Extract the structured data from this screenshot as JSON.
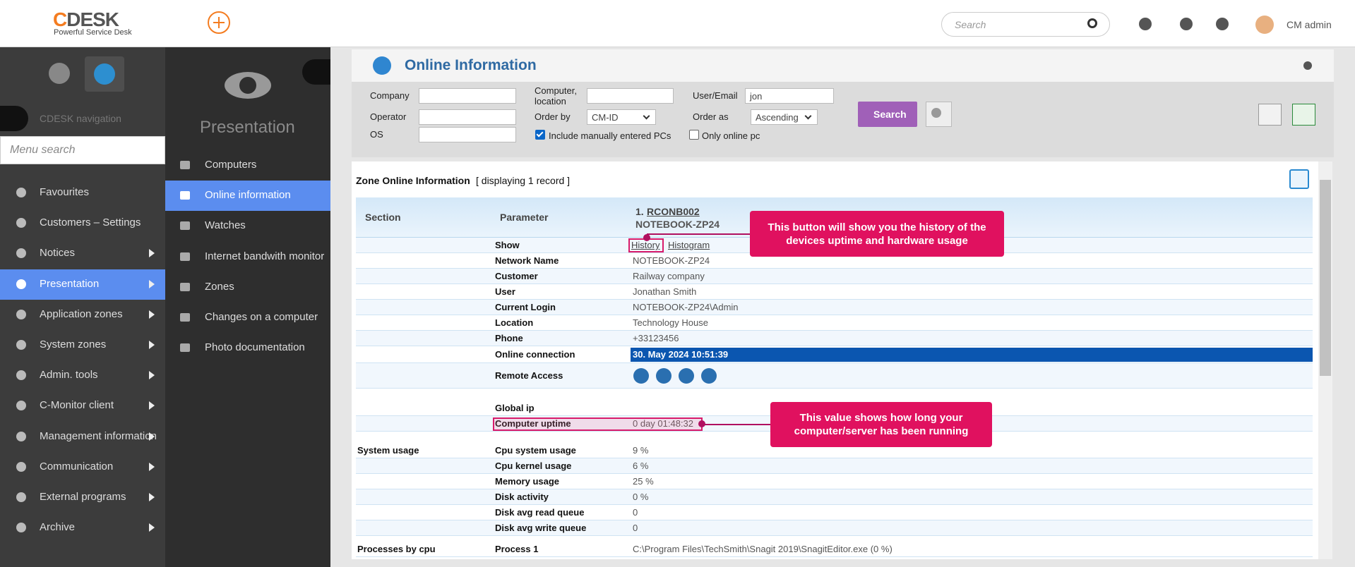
{
  "header": {
    "logo": "CDESK",
    "tagline": "Powerful Service Desk",
    "search_placeholder": "Search",
    "user": "CM admin"
  },
  "nav": {
    "label": "CDESK navigation",
    "search_placeholder": "Menu search",
    "items": [
      {
        "label": "Favourites"
      },
      {
        "label": "Customers – Settings"
      },
      {
        "label": "Notices",
        "has_submenu": true
      },
      {
        "label": "Presentation",
        "has_submenu": true,
        "active": true
      },
      {
        "label": "Application zones",
        "has_submenu": true
      },
      {
        "label": "System zones",
        "has_submenu": true
      },
      {
        "label": "Admin. tools",
        "has_submenu": true
      },
      {
        "label": "C-Monitor client",
        "has_submenu": true
      },
      {
        "label": "Management information",
        "has_submenu": true
      },
      {
        "label": "Communication",
        "has_submenu": true
      },
      {
        "label": "External programs",
        "has_submenu": true
      },
      {
        "label": "Archive",
        "has_submenu": true
      }
    ]
  },
  "submenu": {
    "title": "Presentation",
    "items": [
      {
        "label": "Computers"
      },
      {
        "label": "Online information",
        "active": true
      },
      {
        "label": "Watches"
      },
      {
        "label": "Internet bandwith monitor"
      },
      {
        "label": "Zones"
      },
      {
        "label": "Changes on a computer"
      },
      {
        "label": "Photo documentation"
      }
    ]
  },
  "page": {
    "title": "Online Information"
  },
  "filters": {
    "company": "Company",
    "computer_location": "Computer, location",
    "user_email": "User/Email",
    "user_email_value": "jon",
    "operator": "Operator",
    "order_by": "Order by",
    "order_by_value": "CM-ID",
    "order_as": "Order as",
    "order_as_value": "Ascending",
    "os": "OS",
    "include_manual": "Include manually entered PCs",
    "include_manual_checked": true,
    "only_online": "Only online pc",
    "only_online_checked": false,
    "search_button": "Search"
  },
  "zone": {
    "title": "Zone Online Information",
    "record_info": "[ displaying 1 record ]"
  },
  "table": {
    "headers": [
      "Section",
      "Parameter"
    ],
    "device": {
      "number": "1.",
      "id": "RCONB002",
      "name": "NOTEBOOK-ZP24"
    },
    "rows": [
      {
        "parameter": "Show",
        "links": [
          "History",
          "Histogram"
        ]
      },
      {
        "parameter": "Network Name",
        "value": "NOTEBOOK-ZP24"
      },
      {
        "parameter": "Customer",
        "value": "Railway company"
      },
      {
        "parameter": "User",
        "value": "Jonathan Smith"
      },
      {
        "parameter": "Current Login",
        "value": "NOTEBOOK-ZP24\\Admin"
      },
      {
        "parameter": "Location",
        "value": "Technology House"
      },
      {
        "parameter": "Phone",
        "value": "+33123456"
      },
      {
        "parameter": "Online connection",
        "value": "30. May 2024 10:51:39",
        "highlight": true
      },
      {
        "parameter": "Remote Access",
        "icons": 4
      },
      {
        "parameter": "Global ip"
      },
      {
        "parameter": "Computer uptime",
        "value": "0 day 01:48:32"
      },
      {
        "section": "System usage",
        "parameter": "Cpu system usage",
        "value": "9 %"
      },
      {
        "parameter": "Cpu kernel usage",
        "value": "6 %"
      },
      {
        "parameter": "Memory usage",
        "value": "25 %"
      },
      {
        "parameter": "Disk activity",
        "value": "0 %"
      },
      {
        "parameter": "Disk avg read queue",
        "value": "0"
      },
      {
        "parameter": "Disk avg write queue",
        "value": "0"
      },
      {
        "section": "Processes by cpu",
        "parameter": "Process 1",
        "value": "C:\\Program Files\\TechSmith\\Snagit 2019\\SnagitEditor.exe (0 %)"
      }
    ]
  },
  "callouts": [
    "This button will show you the history of the devices uptime and hardware usage",
    "This value shows how long your computer/server has been running"
  ]
}
